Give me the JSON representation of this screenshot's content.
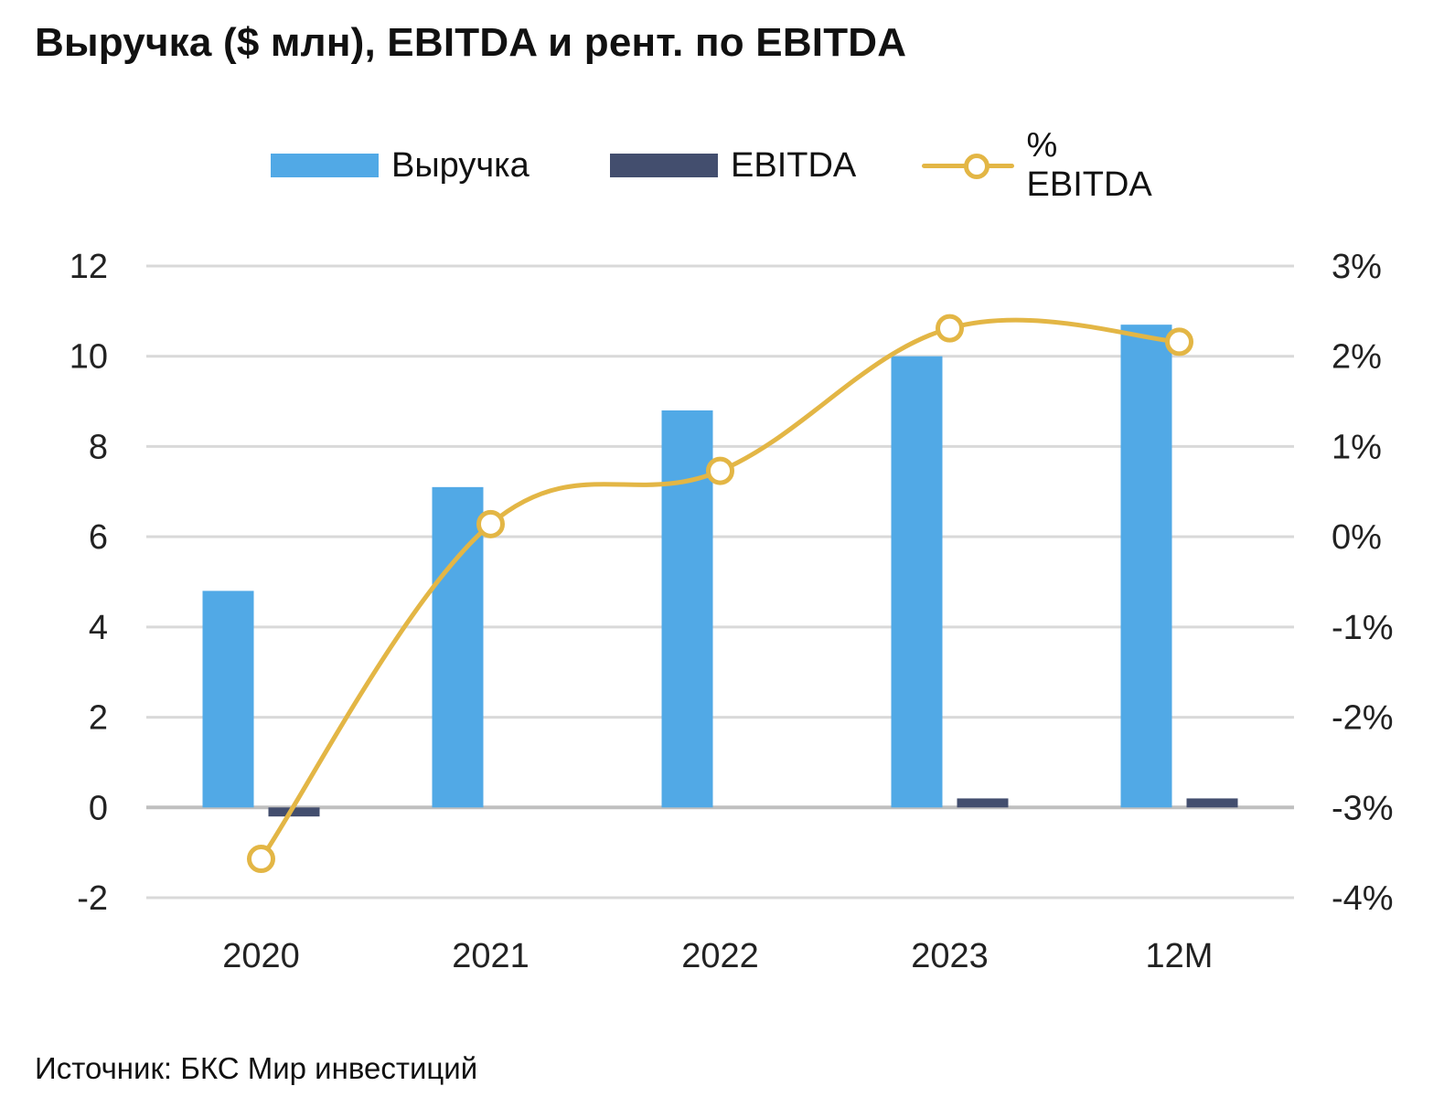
{
  "title": "Выручка ($ млн), EBITDA и рент. по EBITDA",
  "source": "Источник: БКС Мир инвестиций",
  "colors": {
    "revenue": "#51a9e6",
    "ebitda": "#434e6e",
    "margin": "#e3b645",
    "grid": "#d9d9d9",
    "axis": "#bfbfbf"
  },
  "chart_data": {
    "type": "bar+line",
    "categories": [
      "2020",
      "2021",
      "2022",
      "2023",
      "12M"
    ],
    "series": [
      {
        "name": "Выручка",
        "type": "bar",
        "axis": "left",
        "values": [
          4.8,
          7.1,
          8.8,
          10.0,
          10.7
        ]
      },
      {
        "name": "EBITDA",
        "type": "bar",
        "axis": "left",
        "values": [
          -0.2,
          0.0,
          0.0,
          0.2,
          0.2
        ]
      },
      {
        "name": "% EBITDA",
        "type": "line",
        "axis": "right",
        "values": [
          -3.57,
          0.14,
          0.73,
          2.31,
          2.16
        ]
      }
    ],
    "y_left": {
      "min": -2,
      "max": 12,
      "ticks": [
        "12",
        "10",
        "8",
        "6",
        "4",
        "2",
        "0",
        "-2"
      ]
    },
    "y_right": {
      "min": -4,
      "max": 3,
      "ticks": [
        "3%",
        "2%",
        "1%",
        "0%",
        "-1%",
        "-2%",
        "-3%",
        "-4%"
      ]
    },
    "grid": true,
    "legend_position": "top"
  }
}
